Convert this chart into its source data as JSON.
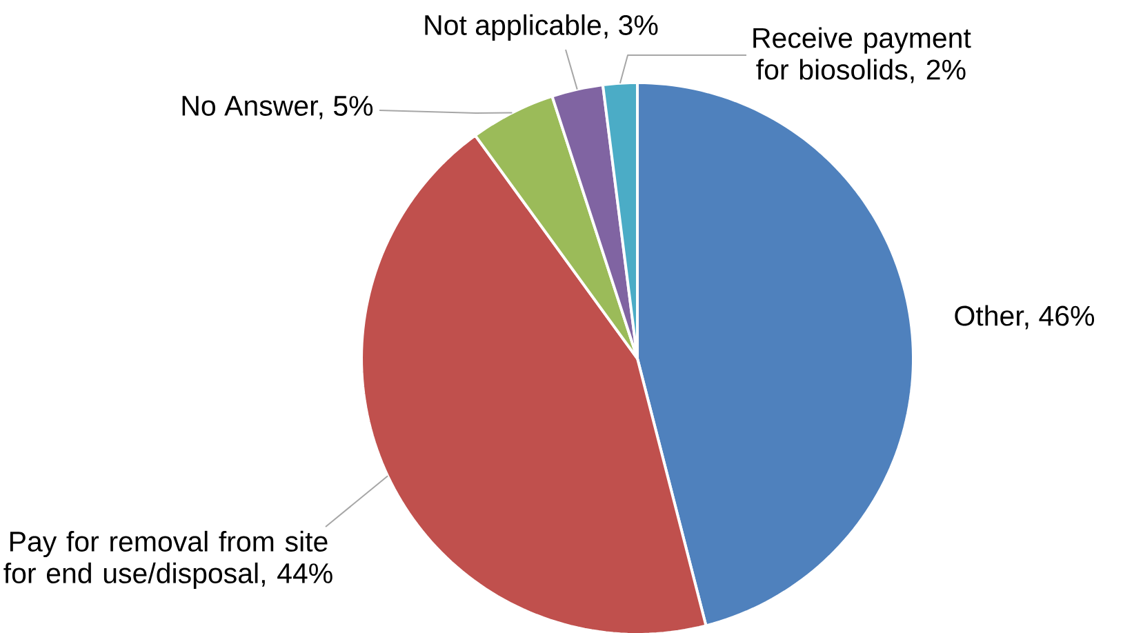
{
  "chart_data": {
    "type": "pie",
    "categories": [
      "Other, 46%",
      "Pay for removal from site for end use/disposal, 44%",
      "No Answer, 5%",
      "Not applicable, 3%",
      "Receive payment for biosolids, 2%"
    ],
    "values": [
      46,
      44,
      5,
      3,
      2
    ],
    "colors": [
      "#4f81bd",
      "#c0504d",
      "#9bbb59",
      "#8064a2",
      "#4bacc6"
    ]
  }
}
